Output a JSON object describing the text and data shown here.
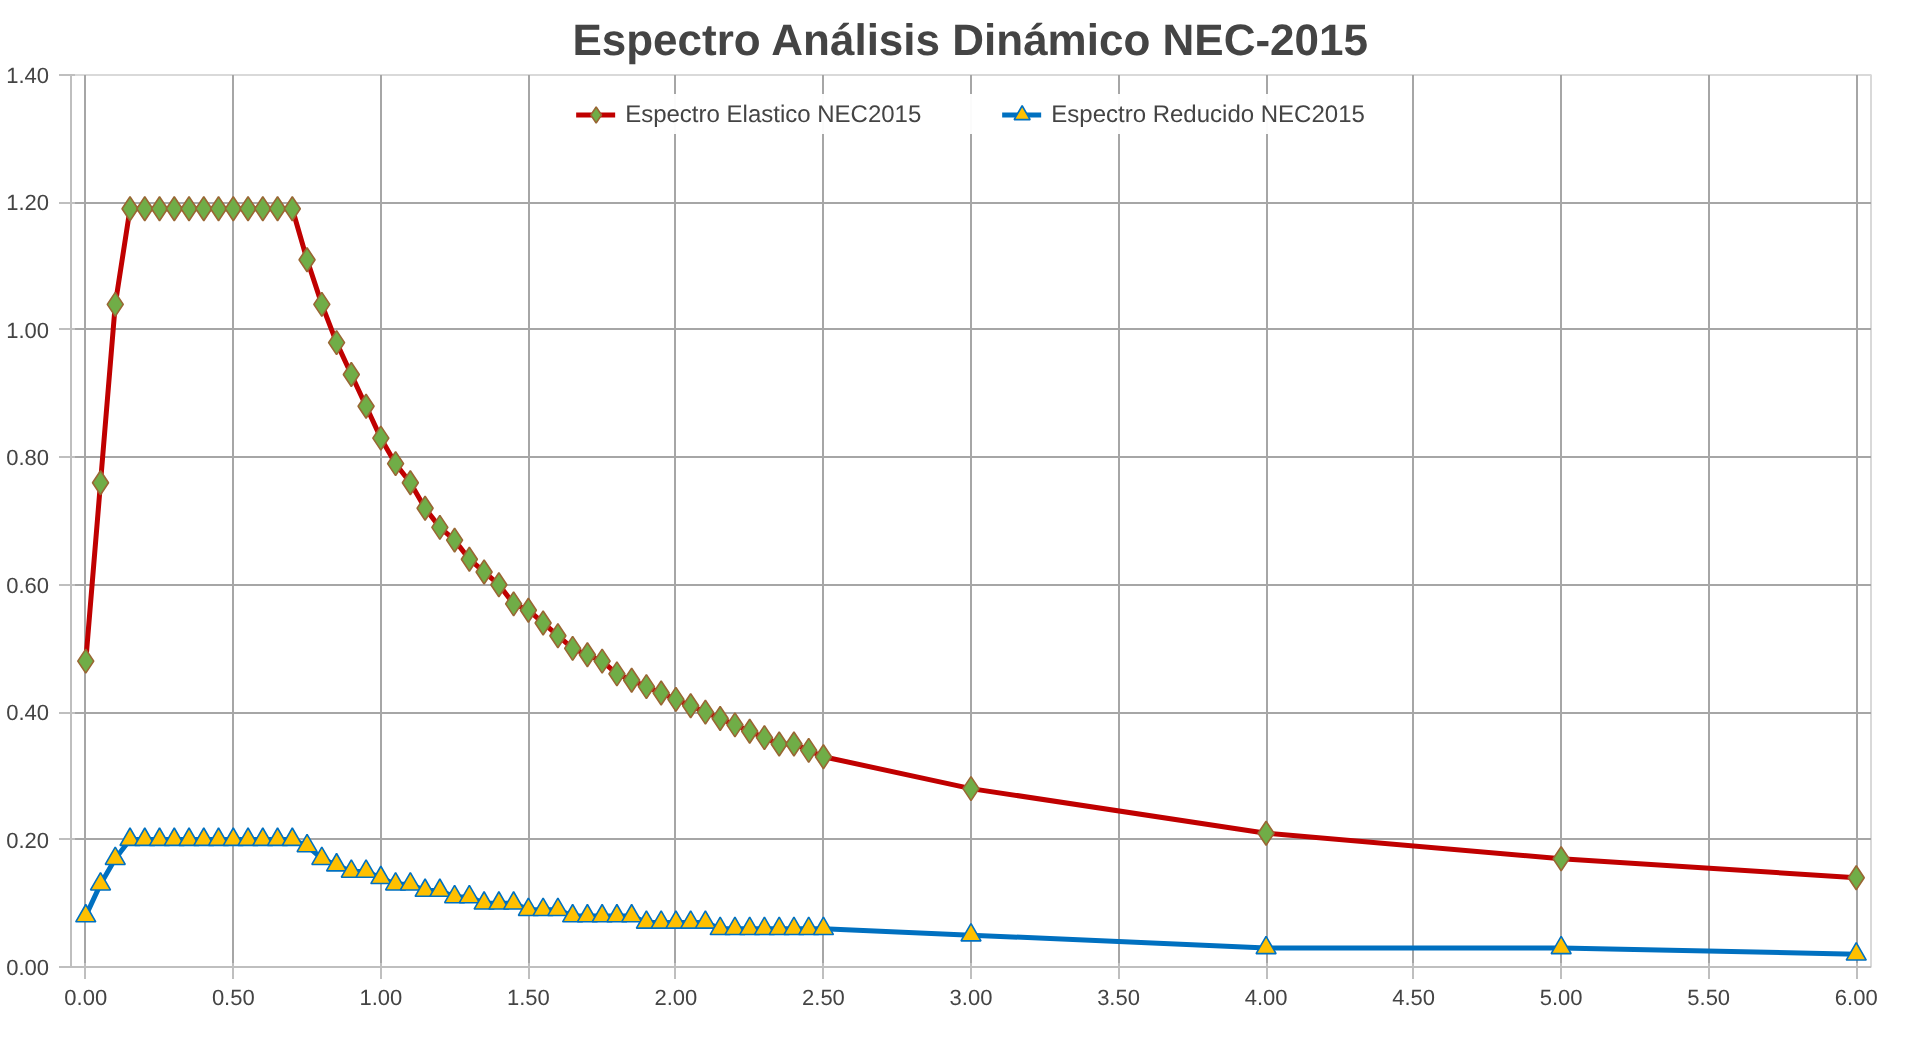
{
  "chart_data": {
    "type": "line",
    "title": "Espectro Análisis Dinámico NEC-2015",
    "x": [
      0,
      0.05,
      0.1,
      0.15,
      0.2,
      0.25,
      0.3,
      0.35,
      0.4,
      0.45,
      0.5,
      0.55,
      0.6,
      0.65,
      0.7,
      0.75,
      0.8,
      0.85,
      0.9,
      0.95,
      1.0,
      1.05,
      1.1,
      1.15,
      1.2,
      1.25,
      1.3,
      1.35,
      1.4,
      1.45,
      1.5,
      1.55,
      1.6,
      1.65,
      1.7,
      1.75,
      1.8,
      1.85,
      1.9,
      1.95,
      2.0,
      2.05,
      2.1,
      2.15,
      2.2,
      2.25,
      2.3,
      2.35,
      2.4,
      2.45,
      2.5,
      3,
      4,
      5,
      6
    ],
    "series": [
      {
        "name": "Espectro Elastico NEC2015",
        "color": "#c00000",
        "marker": "diamond",
        "values": [
          0.48,
          0.76,
          1.04,
          1.19,
          1.19,
          1.19,
          1.19,
          1.19,
          1.19,
          1.19,
          1.19,
          1.19,
          1.19,
          1.19,
          1.19,
          1.11,
          1.04,
          0.98,
          0.93,
          0.88,
          0.83,
          0.79,
          0.76,
          0.72,
          0.69,
          0.67,
          0.64,
          0.62,
          0.6,
          0.57,
          0.56,
          0.54,
          0.52,
          0.5,
          0.49,
          0.48,
          0.46,
          0.45,
          0.44,
          0.43,
          0.42,
          0.41,
          0.4,
          0.39,
          0.38,
          0.37,
          0.36,
          0.35,
          0.35,
          0.34,
          0.33,
          0.28,
          0.21,
          0.17,
          0.14
        ]
      },
      {
        "name": "Espectro Reducido NEC2015",
        "color": "#0070c0",
        "marker": "triangle",
        "values": [
          0.08,
          0.13,
          0.17,
          0.2,
          0.2,
          0.2,
          0.2,
          0.2,
          0.2,
          0.2,
          0.2,
          0.2,
          0.2,
          0.2,
          0.2,
          0.19,
          0.17,
          0.16,
          0.15,
          0.15,
          0.14,
          0.13,
          0.13,
          0.12,
          0.12,
          0.11,
          0.11,
          0.1,
          0.1,
          0.1,
          0.09,
          0.09,
          0.09,
          0.08,
          0.08,
          0.08,
          0.08,
          0.08,
          0.07,
          0.07,
          0.07,
          0.07,
          0.07,
          0.06,
          0.06,
          0.06,
          0.06,
          0.06,
          0.06,
          0.06,
          0.06,
          0.05,
          0.03,
          0.03,
          0.02
        ]
      }
    ],
    "xlim": [
      -0.05,
      6.05
    ],
    "ylim": [
      0,
      1.4
    ],
    "xticks": [
      {
        "value": 0,
        "label": "0.00"
      },
      {
        "value": 0.5,
        "label": "0.50"
      },
      {
        "value": 1,
        "label": "1.00"
      },
      {
        "value": 1.5,
        "label": "1.50"
      },
      {
        "value": 2,
        "label": "2.00"
      },
      {
        "value": 2.5,
        "label": "2.50"
      },
      {
        "value": 3,
        "label": "3.00"
      },
      {
        "value": 3.5,
        "label": "3.50"
      },
      {
        "value": 4,
        "label": "4.00"
      },
      {
        "value": 4.5,
        "label": "4.50"
      },
      {
        "value": 5,
        "label": "5.00"
      },
      {
        "value": 5.5,
        "label": "5.50"
      },
      {
        "value": 6,
        "label": "6.00"
      }
    ],
    "yticks": [
      {
        "value": 0,
        "label": "0.00"
      },
      {
        "value": 0.2,
        "label": "0.20"
      },
      {
        "value": 0.4,
        "label": "0.40"
      },
      {
        "value": 0.6,
        "label": "0.60"
      },
      {
        "value": 0.8,
        "label": "0.80"
      },
      {
        "value": 1,
        "label": "1.00"
      },
      {
        "value": 1.2,
        "label": "1.20"
      },
      {
        "value": 1.4,
        "label": "1.40"
      }
    ],
    "grid": true,
    "legend": "top",
    "line_style": "solid"
  }
}
